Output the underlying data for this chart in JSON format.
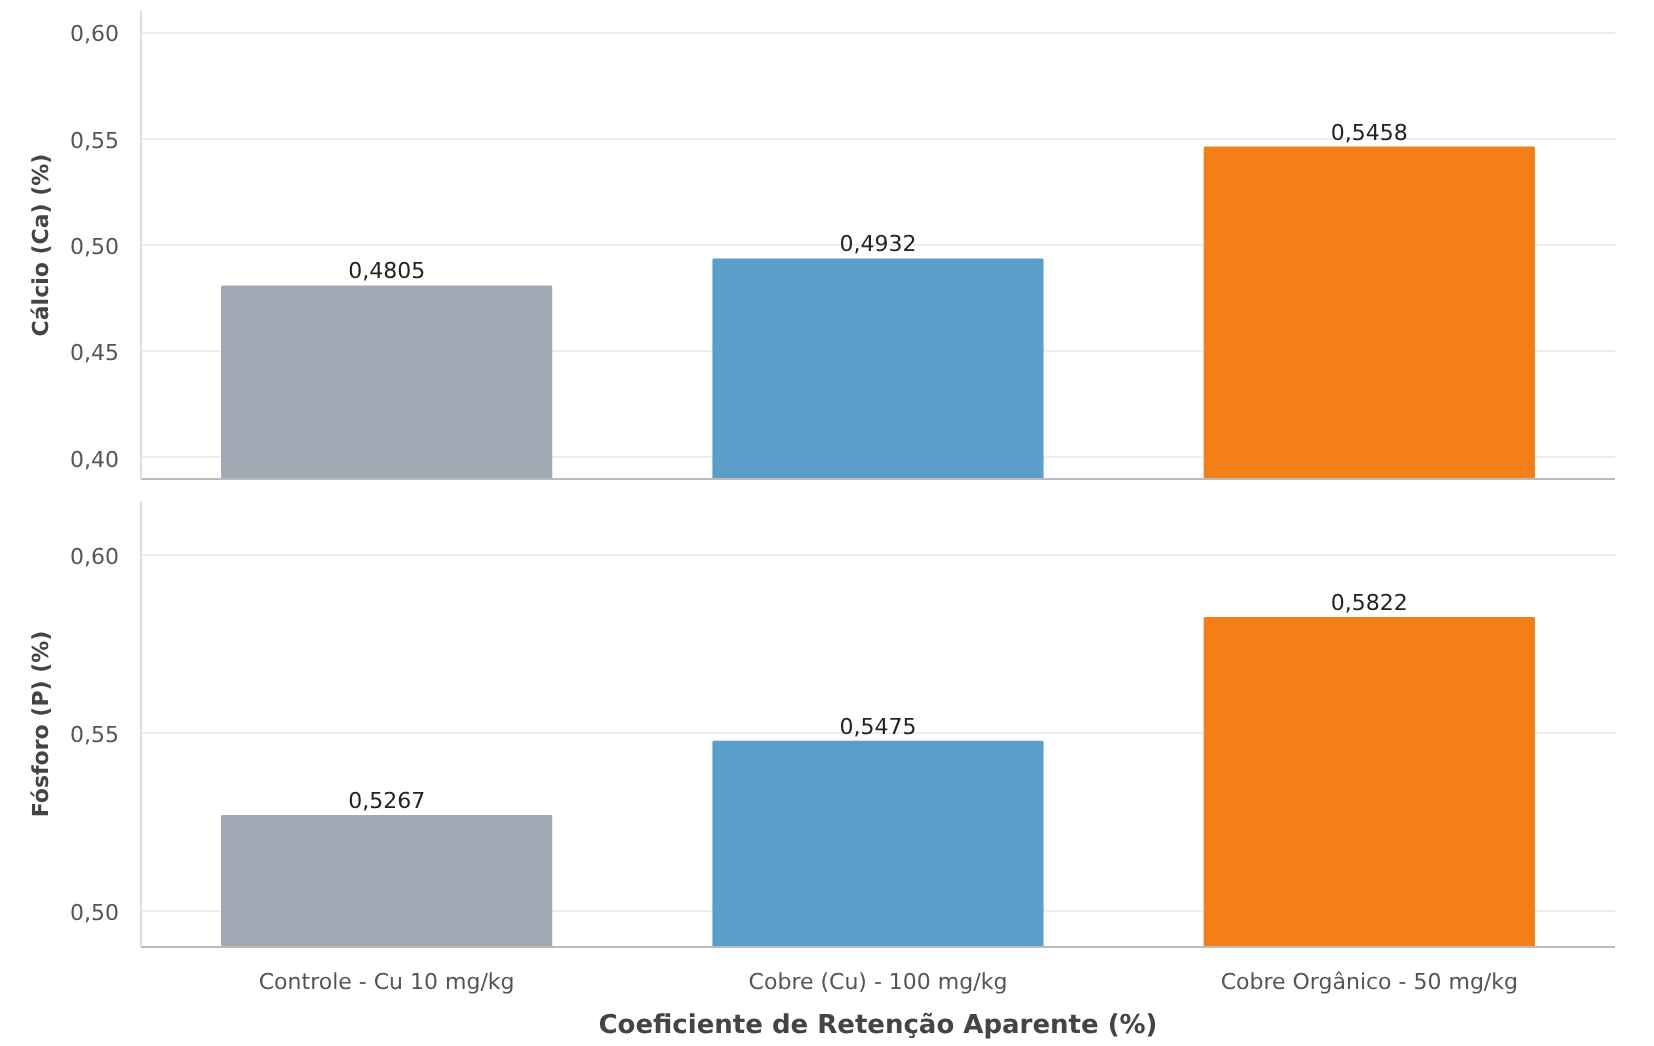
{
  "chart_data": [
    {
      "type": "bar",
      "ylabel": "Cálcio (Ca) (%)",
      "categories": [
        null,
        null,
        null
      ],
      "values": [
        0.4805,
        0.4932,
        0.5458
      ],
      "colors": [
        "#a0aab5",
        "#5b9ec9",
        "#f57f17"
      ],
      "value_labels": [
        "0,4805",
        "0,4932",
        "0,5458"
      ],
      "ylim": [
        0.39,
        0.61
      ],
      "yticks": [
        {
          "value": 0.4,
          "label": "0,40"
        },
        {
          "value": 0.45,
          "label": "0,45"
        },
        {
          "value": 0.5,
          "label": "0,50"
        },
        {
          "value": 0.55,
          "label": "0,55"
        },
        {
          "value": 0.6,
          "label": "0,60"
        }
      ],
      "grid": "y",
      "tick_labels": "y"
    },
    {
      "type": "bar",
      "ylabel": "Fósforo (P) (%)",
      "xlabel": "Coeficiente de Retenção Aparente (%)",
      "categories": [
        "Controle - Cu 10 mg/kg",
        "Cobre (Cu) - 100 mg/kg",
        "Cobre Orgânico - 50 mg/kg"
      ],
      "values": [
        0.5267,
        0.5475,
        0.5822
      ],
      "colors": [
        "#a0aab5",
        "#5b9ec9",
        "#f57f17"
      ],
      "value_labels": [
        "0,5267",
        "0,5475",
        "0,5822"
      ],
      "ylim": [
        0.49,
        0.615
      ],
      "yticks": [
        {
          "value": 0.5,
          "label": "0,50"
        },
        {
          "value": 0.55,
          "label": "0,55"
        },
        {
          "value": 0.6,
          "label": "0,60"
        }
      ],
      "grid": "y"
    }
  ]
}
